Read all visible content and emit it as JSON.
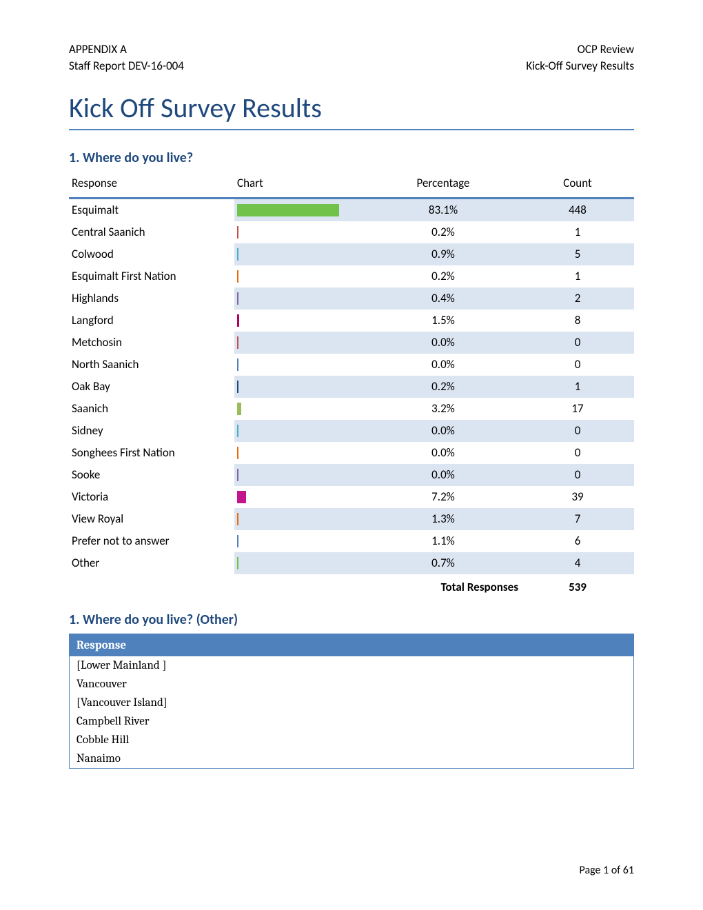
{
  "header": {
    "left_line1": "APPENDIX A",
    "left_line2": "Staff Report DEV-16-004",
    "right_line1": "OCP Review",
    "right_line2": "Kick-Off Survey Results"
  },
  "main_title": "Kick Off Survey Results",
  "question1": {
    "title": "1. Where do you live?",
    "columns": {
      "response": "Response",
      "chart": "Chart",
      "percentage": "Percentage",
      "count": "Count"
    },
    "chart_max_pct": 100,
    "shade_bg": "#dbe5f1",
    "border_color": "#4f81bd",
    "rows": [
      {
        "response": "Esquimalt",
        "pct": "83.1%",
        "pct_num": 83.1,
        "count": 448,
        "bar_color": "#70c24a",
        "shaded": true
      },
      {
        "response": "Central Saanich",
        "pct": "0.2%",
        "pct_num": 0.2,
        "count": 1,
        "bar_color": "#c0504d",
        "shaded": false
      },
      {
        "response": "Colwood",
        "pct": "0.9%",
        "pct_num": 0.9,
        "count": 5,
        "bar_color": "#4bacc6",
        "shaded": true
      },
      {
        "response": "Esquimalt First Nation",
        "pct": "0.2%",
        "pct_num": 0.2,
        "count": 1,
        "bar_color": "#e46c0a",
        "shaded": false
      },
      {
        "response": "Highlands",
        "pct": "0.4%",
        "pct_num": 0.4,
        "count": 2,
        "bar_color": "#8064a2",
        "shaded": true
      },
      {
        "response": "Langford",
        "pct": "1.5%",
        "pct_num": 1.5,
        "count": 8,
        "bar_color": "#b3005a",
        "shaded": false
      },
      {
        "response": "Metchosin",
        "pct": "0.0%",
        "pct_num": 0.0,
        "count": 0,
        "bar_color": "#c0504d",
        "shaded": true
      },
      {
        "response": "North Saanich",
        "pct": "0.0%",
        "pct_num": 0.0,
        "count": 0,
        "bar_color": "#4f81bd",
        "shaded": false
      },
      {
        "response": "Oak Bay",
        "pct": "0.2%",
        "pct_num": 0.2,
        "count": 1,
        "bar_color": "#1f497d",
        "shaded": true
      },
      {
        "response": "Saanich",
        "pct": "3.2%",
        "pct_num": 3.2,
        "count": 17,
        "bar_color": "#9bbb59",
        "shaded": false
      },
      {
        "response": "Sidney",
        "pct": "0.0%",
        "pct_num": 0.0,
        "count": 0,
        "bar_color": "#4bacc6",
        "shaded": true
      },
      {
        "response": "Songhees First Nation",
        "pct": "0.0%",
        "pct_num": 0.0,
        "count": 0,
        "bar_color": "#e46c0a",
        "shaded": false
      },
      {
        "response": "Sooke",
        "pct": "0.0%",
        "pct_num": 0.0,
        "count": 0,
        "bar_color": "#8064a2",
        "shaded": true
      },
      {
        "response": "Victoria",
        "pct": "7.2%",
        "pct_num": 7.2,
        "count": 39,
        "bar_color": "#c3158c",
        "shaded": false
      },
      {
        "response": "View Royal",
        "pct": "1.3%",
        "pct_num": 1.3,
        "count": 7,
        "bar_color": "#e46c0a",
        "shaded": true
      },
      {
        "response": "Prefer not to answer",
        "pct": "1.1%",
        "pct_num": 1.1,
        "count": 6,
        "bar_color": "#4f81bd",
        "shaded": false
      },
      {
        "response": "Other",
        "pct": "0.7%",
        "pct_num": 0.7,
        "count": 4,
        "bar_color": "#70c24a",
        "shaded": true
      }
    ],
    "total_label": "Total Responses",
    "total_count": 539
  },
  "question1_other": {
    "title": "1. Where do you live? (Other)",
    "header": "Response",
    "rows": [
      "[Lower Mainland ]",
      "Vancouver",
      "[Vancouver Island]",
      "Campbell River",
      "Cobble Hill",
      "Nanaimo"
    ]
  },
  "footer": "Page 1 of 61"
}
